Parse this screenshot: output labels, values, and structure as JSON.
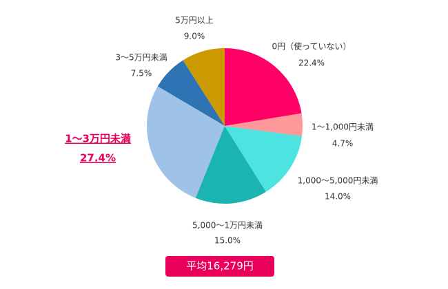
{
  "chart_data": {
    "type": "pie",
    "categories": [
      "0円（使っていない）",
      "1〜1,000円未満",
      "1,000〜5,000円未満",
      "5,000〜1万円未満",
      "1〜3万円未満",
      "3〜5万円未満",
      "5万円以上"
    ],
    "values": [
      22.4,
      4.7,
      14.0,
      15.0,
      27.4,
      7.5,
      9.0
    ],
    "value_labels": [
      "22.4%",
      "4.7%",
      "14.0%",
      "15.0%",
      "27.4%",
      "7.5%",
      "9.0%"
    ],
    "colors": [
      "#ff0066",
      "#ff9999",
      "#4de3e0",
      "#1ab5b0",
      "#9fc3e7",
      "#2e74b5",
      "#cc9900"
    ],
    "annotation": "平均16,279円"
  }
}
